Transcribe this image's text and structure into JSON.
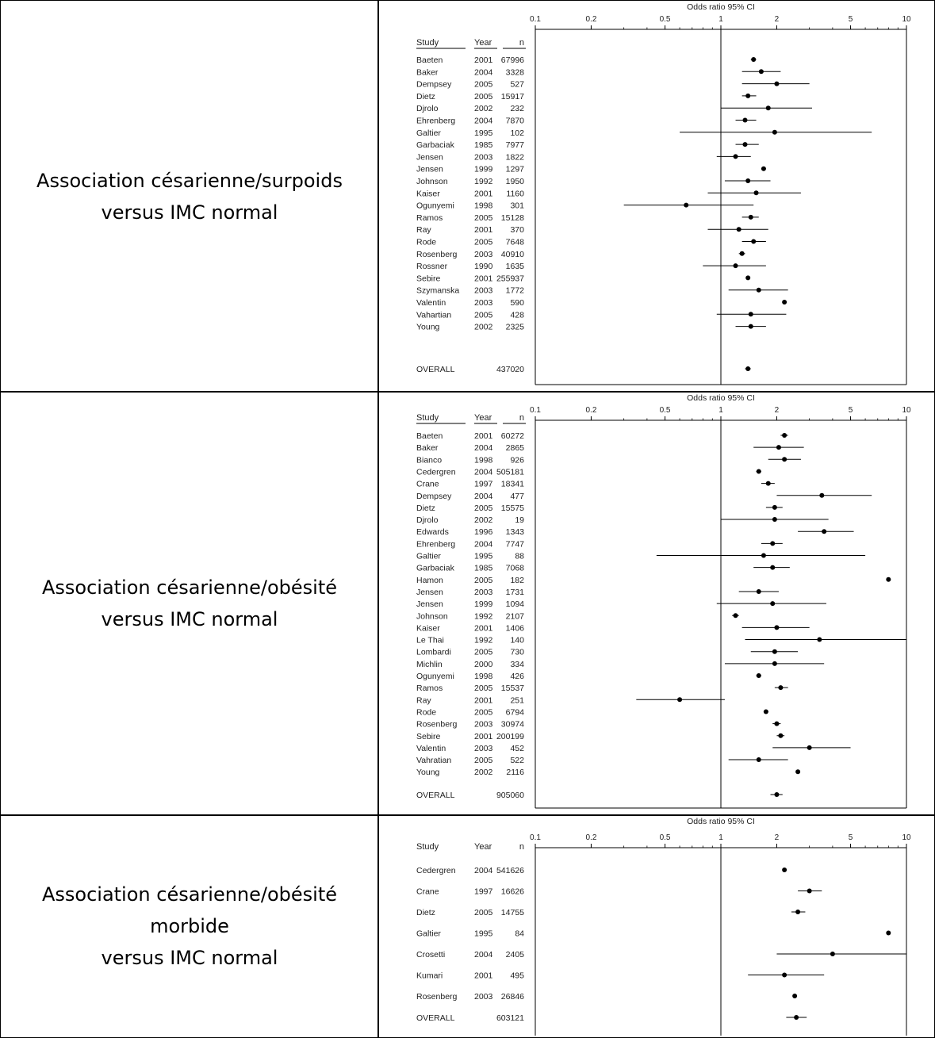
{
  "panels": [
    {
      "label": "Association césarienne/surpoids\nversus IMC normal",
      "chart_data": {
        "type": "forest",
        "title": "Odds ratio 95% CI",
        "x_scale": "log",
        "xlim": [
          0.1,
          10
        ],
        "x_ticks": [
          "0.1",
          "0.2",
          "0.5",
          "1",
          "2",
          "5",
          "10"
        ],
        "headers": {
          "study": "Study",
          "year": "Year",
          "n": "n"
        },
        "rows": [
          {
            "study": "Baeten",
            "year": "2001",
            "n": "67996",
            "or": 1.5,
            "lo": 1.45,
            "hi": 1.55
          },
          {
            "study": "Baker",
            "year": "2004",
            "n": "3328",
            "or": 1.65,
            "lo": 1.3,
            "hi": 2.1
          },
          {
            "study": "Dempsey",
            "year": "2005",
            "n": "527",
            "or": 2.0,
            "lo": 1.3,
            "hi": 3.0
          },
          {
            "study": "Dietz",
            "year": "2005",
            "n": "15917",
            "or": 1.4,
            "lo": 1.3,
            "hi": 1.55
          },
          {
            "study": "Djrolo",
            "year": "2002",
            "n": "232",
            "or": 1.8,
            "lo": 1.0,
            "hi": 3.1
          },
          {
            "study": "Ehrenberg",
            "year": "2004",
            "n": "7870",
            "or": 1.35,
            "lo": 1.2,
            "hi": 1.55
          },
          {
            "study": "Galtier",
            "year": "1995",
            "n": "102",
            "or": 1.95,
            "lo": 0.6,
            "hi": 6.5
          },
          {
            "study": "Garbaciak",
            "year": "1985",
            "n": "7977",
            "or": 1.35,
            "lo": 1.2,
            "hi": 1.6
          },
          {
            "study": "Jensen",
            "year": "2003",
            "n": "1822",
            "or": 1.2,
            "lo": 0.95,
            "hi": 1.45
          },
          {
            "study": "Jensen",
            "year": "1999",
            "n": "1297",
            "or": 1.7,
            "lo": 1.65,
            "hi": 1.75
          },
          {
            "study": "Johnson",
            "year": "1992",
            "n": "1950",
            "or": 1.4,
            "lo": 1.05,
            "hi": 1.85
          },
          {
            "study": "Kaiser",
            "year": "2001",
            "n": "1160",
            "or": 1.55,
            "lo": 0.85,
            "hi": 2.7
          },
          {
            "study": "Ogunyemi",
            "year": "1998",
            "n": "301",
            "or": 0.65,
            "lo": 0.3,
            "hi": 1.5
          },
          {
            "study": "Ramos",
            "year": "2005",
            "n": "15128",
            "or": 1.45,
            "lo": 1.3,
            "hi": 1.6
          },
          {
            "study": "Ray",
            "year": "2001",
            "n": "370",
            "or": 1.25,
            "lo": 0.85,
            "hi": 1.8
          },
          {
            "study": "Rode",
            "year": "2005",
            "n": "7648",
            "or": 1.5,
            "lo": 1.3,
            "hi": 1.75
          },
          {
            "study": "Rosenberg",
            "year": "2003",
            "n": "40910",
            "or": 1.3,
            "lo": 1.25,
            "hi": 1.35
          },
          {
            "study": "Rossner",
            "year": "1990",
            "n": "1635",
            "or": 1.2,
            "lo": 0.8,
            "hi": 1.75
          },
          {
            "study": "Sebire",
            "year": "2001",
            "n": "255937",
            "or": 1.4,
            "lo": 1.38,
            "hi": 1.42
          },
          {
            "study": "Szymanska",
            "year": "2003",
            "n": "1772",
            "or": 1.6,
            "lo": 1.1,
            "hi": 2.3
          },
          {
            "study": "Valentin",
            "year": "2003",
            "n": "590",
            "or": 2.2,
            "lo": 2.15,
            "hi": 2.25
          },
          {
            "study": "Vahartian",
            "year": "2005",
            "n": "428",
            "or": 1.45,
            "lo": 0.95,
            "hi": 2.25
          },
          {
            "study": "Young",
            "year": "2002",
            "n": "2325",
            "or": 1.45,
            "lo": 1.2,
            "hi": 1.75
          }
        ],
        "overall": {
          "label": "OVERALL",
          "n": "437020",
          "or": 1.4,
          "lo": 1.35,
          "hi": 1.45
        }
      }
    },
    {
      "label": "Association césarienne/obésité\nversus IMC normal",
      "chart_data": {
        "type": "forest",
        "title": "Odds ratio 95% CI",
        "x_scale": "log",
        "xlim": [
          0.1,
          10
        ],
        "x_ticks": [
          "0.1",
          "0.2",
          "0.5",
          "1",
          "2",
          "5",
          "10"
        ],
        "headers": {
          "study": "Study",
          "year": "Year",
          "n": "n"
        },
        "rows": [
          {
            "study": "Baeten",
            "year": "2001",
            "n": "60272",
            "or": 2.2,
            "lo": 2.1,
            "hi": 2.3
          },
          {
            "study": "Baker",
            "year": "2004",
            "n": "2865",
            "or": 2.05,
            "lo": 1.5,
            "hi": 2.8
          },
          {
            "study": "Bianco",
            "year": "1998",
            "n": "926",
            "or": 2.2,
            "lo": 1.8,
            "hi": 2.7
          },
          {
            "study": "Cedergren",
            "year": "2004",
            "n": "505181",
            "or": 1.6,
            "lo": 1.55,
            "hi": 1.65
          },
          {
            "study": "Crane",
            "year": "1997",
            "n": "18341",
            "or": 1.8,
            "lo": 1.65,
            "hi": 1.95
          },
          {
            "study": "Dempsey",
            "year": "2004",
            "n": "477",
            "or": 3.5,
            "lo": 2.0,
            "hi": 6.5
          },
          {
            "study": "Dietz",
            "year": "2005",
            "n": "15575",
            "or": 1.95,
            "lo": 1.75,
            "hi": 2.15
          },
          {
            "study": "Djrolo",
            "year": "2002",
            "n": "19",
            "or": 1.95,
            "lo": 1.0,
            "hi": 3.8
          },
          {
            "study": "Edwards",
            "year": "1996",
            "n": "1343",
            "or": 3.6,
            "lo": 2.6,
            "hi": 5.2
          },
          {
            "study": "Ehrenberg",
            "year": "2004",
            "n": "7747",
            "or": 1.9,
            "lo": 1.65,
            "hi": 2.15
          },
          {
            "study": "Galtier",
            "year": "1995",
            "n": "88",
            "or": 1.7,
            "lo": 0.45,
            "hi": 6.0
          },
          {
            "study": "Garbaciak",
            "year": "1985",
            "n": "7068",
            "or": 1.9,
            "lo": 1.5,
            "hi": 2.35
          },
          {
            "study": "Hamon",
            "year": "2005",
            "n": "182",
            "or": 8.0,
            "lo": 7.95,
            "hi": 8.05
          },
          {
            "study": "Jensen",
            "year": "2003",
            "n": "1731",
            "or": 1.6,
            "lo": 1.25,
            "hi": 2.05
          },
          {
            "study": "Jensen",
            "year": "1999",
            "n": "1094",
            "or": 1.9,
            "lo": 0.95,
            "hi": 3.7
          },
          {
            "study": "Johnson",
            "year": "1992",
            "n": "2107",
            "or": 1.2,
            "lo": 1.15,
            "hi": 1.25
          },
          {
            "study": "Kaiser",
            "year": "2001",
            "n": "1406",
            "or": 2.0,
            "lo": 1.3,
            "hi": 3.0
          },
          {
            "study": "Le Thai",
            "year": "1992",
            "n": "140",
            "or": 3.4,
            "lo": 1.35,
            "hi": 10.0
          },
          {
            "study": "Lombardi",
            "year": "2005",
            "n": "730",
            "or": 1.95,
            "lo": 1.45,
            "hi": 2.6
          },
          {
            "study": "Michlin",
            "year": "2000",
            "n": "334",
            "or": 1.95,
            "lo": 1.05,
            "hi": 3.6
          },
          {
            "study": "Ogunyemi",
            "year": "1998",
            "n": "426",
            "or": 1.6,
            "lo": 1.55,
            "hi": 1.65
          },
          {
            "study": "Ramos",
            "year": "2005",
            "n": "15537",
            "or": 2.1,
            "lo": 1.95,
            "hi": 2.3
          },
          {
            "study": "Ray",
            "year": "2001",
            "n": "251",
            "or": 0.6,
            "lo": 0.35,
            "hi": 1.05
          },
          {
            "study": "Rode",
            "year": "2005",
            "n": "6794",
            "or": 1.75,
            "lo": 1.7,
            "hi": 1.8
          },
          {
            "study": "Rosenberg",
            "year": "2003",
            "n": "30974",
            "or": 2.0,
            "lo": 1.9,
            "hi": 2.1
          },
          {
            "study": "Sebire",
            "year": "2001",
            "n": "200199",
            "or": 2.1,
            "lo": 2.0,
            "hi": 2.2
          },
          {
            "study": "Valentin",
            "year": "2003",
            "n": "452",
            "or": 3.0,
            "lo": 1.9,
            "hi": 5.0
          },
          {
            "study": "Vahratian",
            "year": "2005",
            "n": "522",
            "or": 1.6,
            "lo": 1.1,
            "hi": 2.3
          },
          {
            "study": "Young",
            "year": "2002",
            "n": "2116",
            "or": 2.6,
            "lo": 2.55,
            "hi": 2.65
          }
        ],
        "overall": {
          "label": "OVERALL",
          "n": "905060",
          "or": 2.0,
          "lo": 1.85,
          "hi": 2.15
        }
      }
    },
    {
      "label": "Association césarienne/obésité\nmorbide\nversus IMC normal",
      "chart_data": {
        "type": "forest",
        "title": "Odds ratio 95% CI",
        "x_scale": "log",
        "xlim": [
          0.1,
          10
        ],
        "x_ticks": [
          "0.1",
          "0.2",
          "0.5",
          "1",
          "2",
          "5",
          "10"
        ],
        "headers": {
          "study": "Study",
          "year": "Year",
          "n": "n"
        },
        "rows": [
          {
            "study": "Cedergren",
            "year": "2004",
            "n": "541626",
            "or": 2.2,
            "lo": 2.15,
            "hi": 2.25
          },
          {
            "study": "Crane",
            "year": "1997",
            "n": "16626",
            "or": 3.0,
            "lo": 2.6,
            "hi": 3.5
          },
          {
            "study": "Dietz",
            "year": "2005",
            "n": "14755",
            "or": 2.6,
            "lo": 2.4,
            "hi": 2.85
          },
          {
            "study": "Galtier",
            "year": "1995",
            "n": "84",
            "or": 8.0,
            "lo": 7.95,
            "hi": 8.05
          },
          {
            "study": "Crosetti",
            "year": "2004",
            "n": "2405",
            "or": 4.0,
            "lo": 2.0,
            "hi": 10.0
          },
          {
            "study": "Kumari",
            "year": "2001",
            "n": "495",
            "or": 2.2,
            "lo": 1.4,
            "hi": 3.6
          },
          {
            "study": "Rosenberg",
            "year": "2003",
            "n": "26846",
            "or": 2.5,
            "lo": 2.45,
            "hi": 2.55
          }
        ],
        "overall": {
          "label": "OVERALL",
          "n": "603121",
          "or": 2.55,
          "lo": 2.25,
          "hi": 2.9
        }
      }
    }
  ]
}
